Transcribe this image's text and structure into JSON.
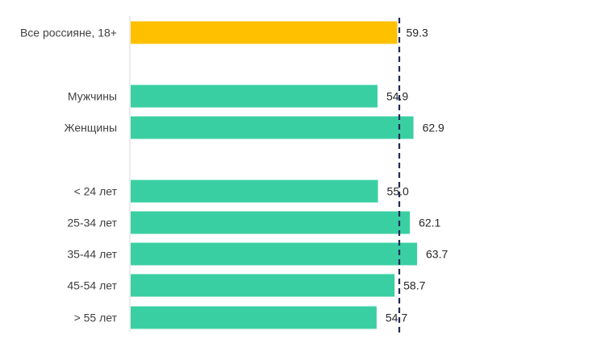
{
  "chart_data": {
    "type": "bar",
    "orientation": "horizontal",
    "categories": [
      "Все россияне, 18+",
      "Мужчины",
      "Женщины",
      "< 24 лет",
      "25-34 лет",
      "35-44 лет",
      "45-54 лет",
      "> 55 лет"
    ],
    "values": [
      59.3,
      54.9,
      62.9,
      55.0,
      62.1,
      63.7,
      58.7,
      54.7
    ],
    "value_labels": [
      "59.3",
      "54.9",
      "62.9",
      "55.0",
      "62.1",
      "63.7",
      "58.7",
      "54.7"
    ],
    "groups": [
      [
        "Все россияне, 18+"
      ],
      [
        "Мужчины",
        "Женщины"
      ],
      [
        "< 24 лет",
        "25-34 лет",
        "35-44 лет",
        "45-54 лет",
        "> 55 лет"
      ]
    ],
    "reference_line": {
      "value": 59.3,
      "style": "dashed"
    },
    "xlim": [
      0,
      65
    ],
    "title": "",
    "xlabel": "",
    "ylabel": "",
    "grid": false,
    "legend": "none",
    "colors": {
      "highlight_bar": "#FFC000",
      "bar": "#3ACFA2",
      "reference_line": "#1F2A5A",
      "axis": "#D9D9D9"
    }
  }
}
